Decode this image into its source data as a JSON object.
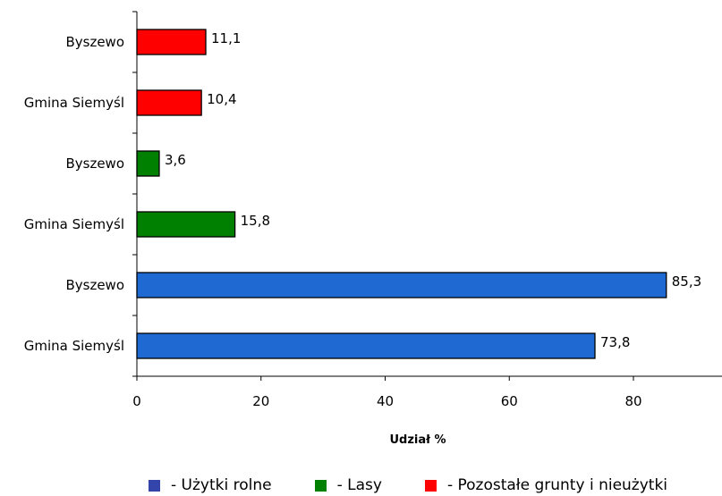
{
  "chart_data": {
    "type": "bar",
    "orientation": "horizontal",
    "categories": [
      "Byszewo",
      "Gmina Siemyśl",
      "Byszewo",
      "Gmina Siemyśl",
      "Byszewo",
      "Gmina Siemyśl"
    ],
    "values": [
      11.1,
      10.4,
      3.6,
      15.8,
      85.3,
      73.8
    ],
    "value_labels": [
      "11,1",
      "10,4",
      "3,6",
      "15,8",
      "85,3",
      "73,8"
    ],
    "bar_colors": [
      "#ff0000",
      "#ff0000",
      "#008000",
      "#008000",
      "#1e6ad2",
      "#1e6ad2"
    ],
    "xlabel": "Udział %",
    "ylabel": "",
    "xlim": [
      0,
      95
    ],
    "xticks": [
      0,
      20,
      40,
      60,
      80
    ],
    "grid": false,
    "legend_position": "bottom",
    "legend": [
      {
        "label": "- Użytki rolne",
        "color": "#3344aa"
      },
      {
        "label": "- Lasy",
        "color": "#008000"
      },
      {
        "label": "- Pozostałe grunty i nieużytki",
        "color": "#ff0000"
      }
    ]
  }
}
